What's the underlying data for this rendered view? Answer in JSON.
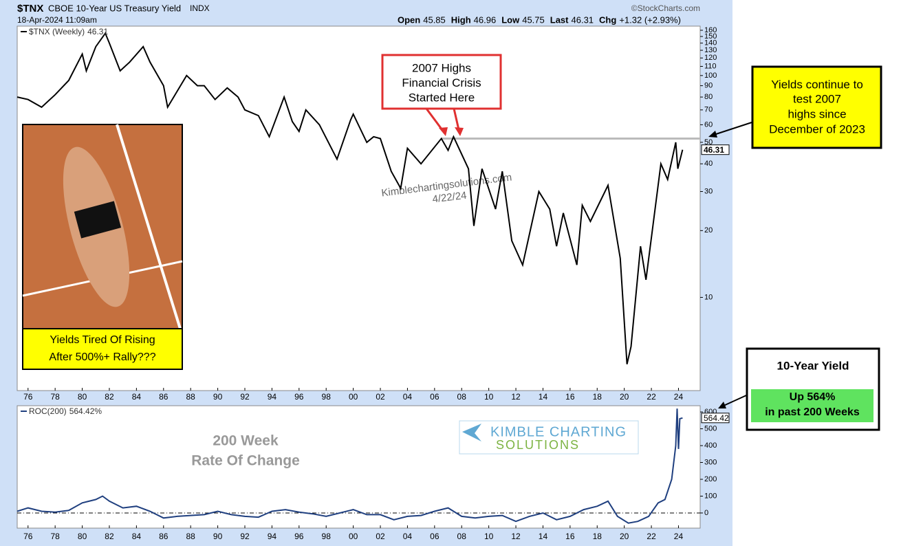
{
  "header": {
    "symbol": "$TNX",
    "name": "CBOE 10-Year US Treasury Yield",
    "exchange": "INDX",
    "source": "©StockCharts.com",
    "date": "18-Apr-2024 11:09am",
    "quote": [
      {
        "label": "Open",
        "value": "45.85"
      },
      {
        "label": "High",
        "value": "46.96"
      },
      {
        "label": "Low",
        "value": "45.75"
      },
      {
        "label": "Last",
        "value": "46.31"
      },
      {
        "label": "Chg",
        "value": "+1.32 (+2.93%)"
      }
    ]
  },
  "chart_data": [
    {
      "type": "line",
      "yscale": "log",
      "x": [
        1975.2,
        1976,
        1977,
        1978,
        1979,
        1980,
        1980.3,
        1981,
        1981.7,
        1982,
        1982.8,
        1983.5,
        1984.5,
        1985,
        1986,
        1986.3,
        1987.7,
        1988.5,
        1989,
        1989.8,
        1990.7,
        1991.5,
        1992,
        1993,
        1993.8,
        1994.9,
        1995.5,
        1996,
        1996.5,
        1997.5,
        1998.8,
        1999.8,
        2000,
        2001,
        2001.5,
        2002,
        2002.8,
        2003.5,
        2004,
        2005,
        2006.5,
        2007,
        2007.4,
        2008.5,
        2008.9,
        2009.5,
        2010.5,
        2011,
        2011.7,
        2012.5,
        2013.7,
        2014.5,
        2015,
        2015.5,
        2016.5,
        2016.9,
        2017.5,
        2018.8,
        2019.7,
        2020.2,
        2020.5,
        2021.2,
        2021.6,
        2022.7,
        2023.2,
        2023.8,
        2023.95,
        2024.3
      ],
      "series": [
        {
          "name": "$TNX (Weekly)",
          "color": "#000000",
          "last_value": 46.31,
          "values": [
            80,
            78,
            72,
            82,
            95,
            125,
            105,
            135,
            155,
            140,
            105,
            115,
            135,
            115,
            90,
            72,
            100,
            90,
            90,
            78,
            88,
            80,
            70,
            66,
            53,
            80,
            62,
            56,
            70,
            60,
            42,
            63,
            67,
            50,
            53,
            52,
            37,
            31,
            47,
            40,
            52,
            46,
            53,
            38,
            21,
            38,
            25,
            37,
            18,
            14,
            30,
            25,
            17,
            24,
            14,
            26,
            22,
            32,
            15,
            5,
            6,
            17,
            12,
            40,
            34,
            50,
            38,
            46.31
          ]
        }
      ],
      "xlim": [
        1975.2,
        2025.6
      ],
      "ylim": [
        3.8,
        167
      ],
      "xticks": [
        {
          "value": 1976,
          "label": "76"
        },
        {
          "value": 1978,
          "label": "78"
        },
        {
          "value": 1980,
          "label": "80"
        },
        {
          "value": 1982,
          "label": "82"
        },
        {
          "value": 1984,
          "label": "84"
        },
        {
          "value": 1986,
          "label": "86"
        },
        {
          "value": 1988,
          "label": "88"
        },
        {
          "value": 1990,
          "label": "90"
        },
        {
          "value": 1992,
          "label": "92"
        },
        {
          "value": 1994,
          "label": "94"
        },
        {
          "value": 1996,
          "label": "96"
        },
        {
          "value": 1998,
          "label": "98"
        },
        {
          "value": 2000,
          "label": "00"
        },
        {
          "value": 2002,
          "label": "02"
        },
        {
          "value": 2004,
          "label": "04"
        },
        {
          "value": 2006,
          "label": "06"
        },
        {
          "value": 2008,
          "label": "08"
        },
        {
          "value": 2010,
          "label": "10"
        },
        {
          "value": 2012,
          "label": "12"
        },
        {
          "value": 2014,
          "label": "14"
        },
        {
          "value": 2016,
          "label": "16"
        },
        {
          "value": 2018,
          "label": "18"
        },
        {
          "value": 2020,
          "label": "20"
        },
        {
          "value": 2022,
          "label": "22"
        },
        {
          "value": 2024,
          "label": "24"
        }
      ],
      "yticks": [
        10,
        20,
        30,
        40,
        50,
        60,
        70,
        80,
        90,
        100,
        110,
        120,
        130,
        140,
        150,
        160
      ],
      "reference_line": {
        "value": 52,
        "x_from": 2006.5,
        "color": "#bbbbbb"
      },
      "annotation": [
        "2007 Highs",
        "Financial Crisis",
        "Started Here"
      ],
      "watermark": [
        "Kimblechartingsolutions.com",
        "4/22/24"
      ]
    },
    {
      "type": "line",
      "x": [
        1975.2,
        1976,
        1977,
        1978,
        1979,
        1980,
        1981,
        1981.5,
        1982,
        1983,
        1984,
        1985,
        1986,
        1987,
        1988,
        1989,
        1990,
        1991,
        1992,
        1993,
        1994,
        1995,
        1996,
        1997,
        1998,
        1999,
        2000,
        2001,
        2002,
        2003,
        2004,
        2005,
        2006,
        2007,
        2008,
        2009,
        2010,
        2011,
        2012,
        2013,
        2014,
        2015,
        2016,
        2017,
        2018,
        2018.8,
        2019.5,
        2020.3,
        2021,
        2021.8,
        2022.5,
        2023,
        2023.5,
        2023.8,
        2023.9,
        2024,
        2024.1,
        2024.3
      ],
      "series": [
        {
          "name": "ROC(200)",
          "color": "#1f3f7f",
          "last_value": 564.42,
          "last_value_label": "564.42%",
          "values": [
            10,
            30,
            10,
            5,
            15,
            60,
            80,
            100,
            70,
            30,
            40,
            10,
            -30,
            -20,
            -15,
            -10,
            10,
            -10,
            -20,
            -25,
            10,
            20,
            5,
            -5,
            -20,
            0,
            20,
            -10,
            -10,
            -40,
            -20,
            -15,
            10,
            30,
            -20,
            -30,
            -20,
            -15,
            -50,
            -20,
            0,
            -40,
            -20,
            20,
            40,
            70,
            -20,
            -60,
            -50,
            -20,
            60,
            80,
            200,
            400,
            620,
            380,
            560,
            564.42
          ]
        }
      ],
      "xlim": [
        1975.2,
        2025.6
      ],
      "ylim": [
        -90,
        637
      ],
      "xticks": [
        {
          "value": 1976,
          "label": "76"
        },
        {
          "value": 1978,
          "label": "78"
        },
        {
          "value": 1980,
          "label": "80"
        },
        {
          "value": 1982,
          "label": "82"
        },
        {
          "value": 1984,
          "label": "84"
        },
        {
          "value": 1986,
          "label": "86"
        },
        {
          "value": 1988,
          "label": "88"
        },
        {
          "value": 1990,
          "label": "90"
        },
        {
          "value": 1992,
          "label": "92"
        },
        {
          "value": 1994,
          "label": "94"
        },
        {
          "value": 1996,
          "label": "96"
        },
        {
          "value": 1998,
          "label": "98"
        },
        {
          "value": 2000,
          "label": "00"
        },
        {
          "value": 2002,
          "label": "02"
        },
        {
          "value": 2004,
          "label": "04"
        },
        {
          "value": 2006,
          "label": "06"
        },
        {
          "value": 2008,
          "label": "08"
        },
        {
          "value": 2010,
          "label": "10"
        },
        {
          "value": 2012,
          "label": "12"
        },
        {
          "value": 2014,
          "label": "14"
        },
        {
          "value": 2016,
          "label": "16"
        },
        {
          "value": 2018,
          "label": "18"
        },
        {
          "value": 2020,
          "label": "20"
        },
        {
          "value": 2022,
          "label": "22"
        },
        {
          "value": 2024,
          "label": "24"
        }
      ],
      "yticks": [
        0,
        100,
        200,
        300,
        400,
        500,
        600
      ],
      "reference_line": {
        "value": 0,
        "color": "#000000"
      },
      "title_lines": [
        "200 Week",
        "Rate Of Change"
      ]
    }
  ],
  "callouts": {
    "photo_caption": [
      "Yields Tired Of Rising",
      "After 500%+ Rally???"
    ],
    "right_note": [
      "Yields continue to",
      "test 2007",
      "highs since",
      "December of 2023"
    ],
    "roc_note": {
      "title": "10-Year Yield",
      "lines": [
        "Up 564%",
        "in past 200 Weeks"
      ]
    },
    "logo": [
      "KIMBLE CHARTING",
      "SOLUTIONS"
    ]
  }
}
